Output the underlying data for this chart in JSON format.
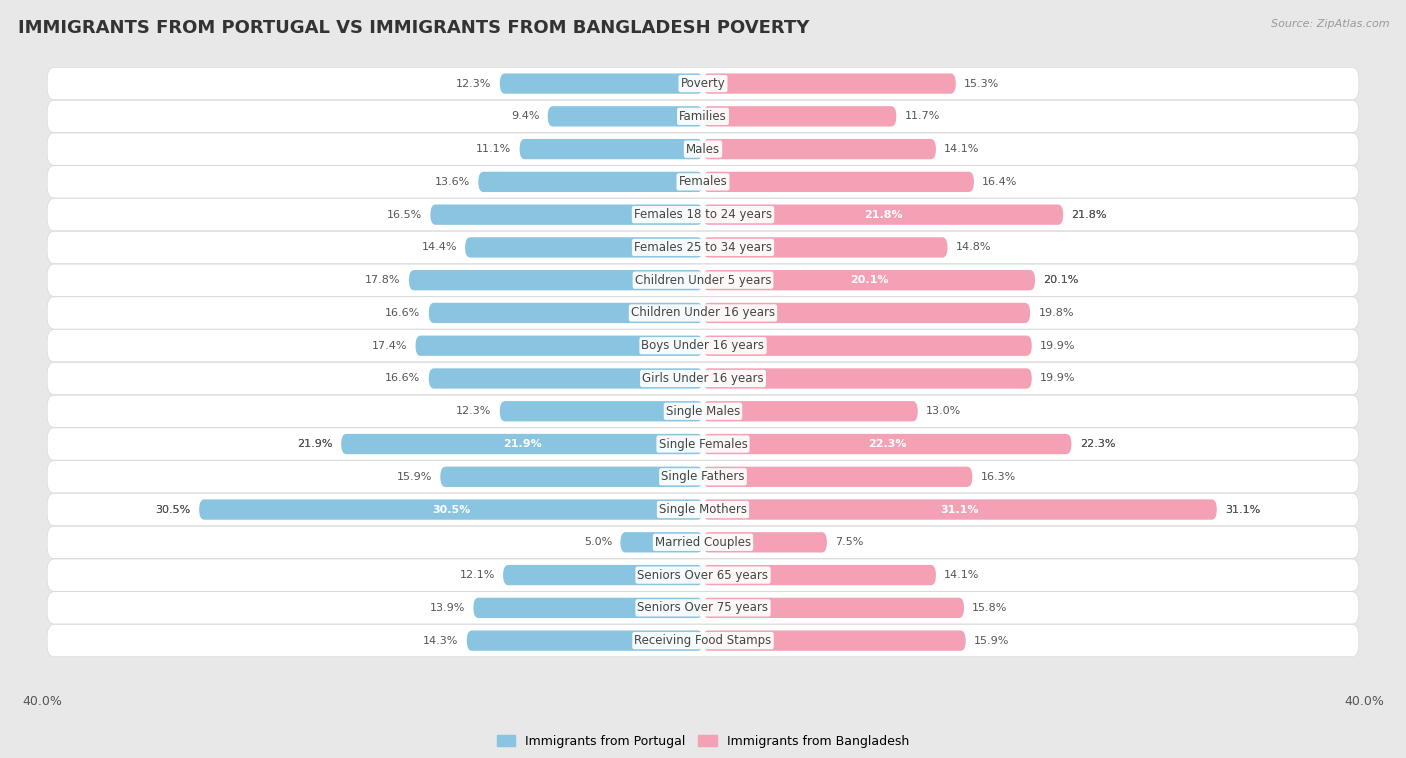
{
  "title": "IMMIGRANTS FROM PORTUGAL VS IMMIGRANTS FROM BANGLADESH POVERTY",
  "source": "Source: ZipAtlas.com",
  "categories": [
    "Poverty",
    "Families",
    "Males",
    "Females",
    "Females 18 to 24 years",
    "Females 25 to 34 years",
    "Children Under 5 years",
    "Children Under 16 years",
    "Boys Under 16 years",
    "Girls Under 16 years",
    "Single Males",
    "Single Females",
    "Single Fathers",
    "Single Mothers",
    "Married Couples",
    "Seniors Over 65 years",
    "Seniors Over 75 years",
    "Receiving Food Stamps"
  ],
  "portugal_values": [
    12.3,
    9.4,
    11.1,
    13.6,
    16.5,
    14.4,
    17.8,
    16.6,
    17.4,
    16.6,
    12.3,
    21.9,
    15.9,
    30.5,
    5.0,
    12.1,
    13.9,
    14.3
  ],
  "bangladesh_values": [
    15.3,
    11.7,
    14.1,
    16.4,
    21.8,
    14.8,
    20.1,
    19.8,
    19.9,
    19.9,
    13.0,
    22.3,
    16.3,
    31.1,
    7.5,
    14.1,
    15.8,
    15.9
  ],
  "portugal_color": "#89c4e1",
  "bangladesh_color": "#f4a0b5",
  "portugal_label": "Immigrants from Portugal",
  "bangladesh_label": "Immigrants from Bangladesh",
  "axis_max": 40.0,
  "background_color": "#e8e8e8",
  "row_color": "#ffffff",
  "title_fontsize": 13,
  "label_fontsize": 8.5,
  "value_fontsize": 8.0,
  "legend_fontsize": 9
}
